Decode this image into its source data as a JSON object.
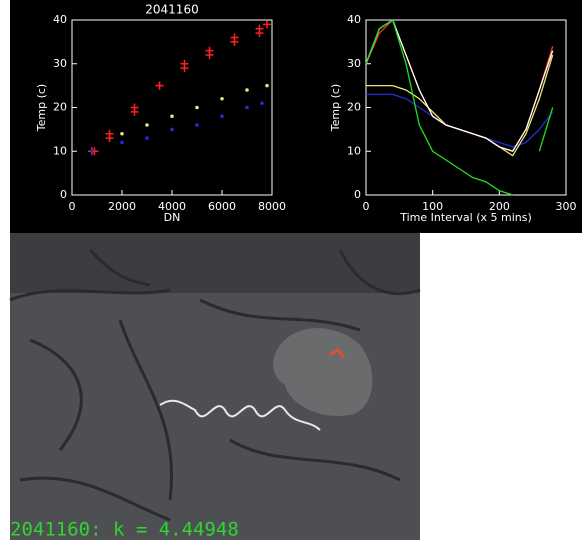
{
  "chart_data": [
    {
      "type": "scatter",
      "title": "2041160",
      "xlabel": "DN",
      "ylabel": "Temp (c)",
      "xlim": [
        0,
        8000
      ],
      "ylim": [
        0,
        40
      ],
      "xticks": [
        0,
        2000,
        4000,
        6000,
        8000
      ],
      "yticks": [
        0,
        10,
        20,
        30,
        40
      ],
      "series": [
        {
          "color": "#ff2020",
          "marker": "plus",
          "x": [
            800,
            1500,
            2500,
            3500,
            4500,
            5500,
            6500,
            7500,
            7800,
            7500,
            6500,
            5500,
            4500,
            3500,
            2500,
            1500,
            900
          ],
          "values": [
            10,
            14,
            20,
            25,
            29,
            32,
            35,
            37,
            39,
            38,
            36,
            33,
            30,
            25,
            19,
            13,
            10
          ]
        },
        {
          "color": "#e8e870",
          "marker": "dot",
          "x": [
            800,
            2000,
            3000,
            4000,
            5000,
            6000,
            7000,
            7800
          ],
          "values": [
            10,
            14,
            16,
            18,
            20,
            22,
            24,
            25
          ]
        },
        {
          "color": "#2030d0",
          "marker": "dot",
          "x": [
            800,
            2000,
            3000,
            4000,
            5000,
            6000,
            7000,
            7600
          ],
          "values": [
            10,
            12,
            13,
            15,
            16,
            18,
            20,
            21
          ]
        }
      ]
    },
    {
      "type": "line",
      "xlabel": "Time Interval (x 5 mins)",
      "ylabel": "Temp (c)",
      "xlim": [
        0,
        300
      ],
      "ylim": [
        0,
        40
      ],
      "xticks": [
        0,
        100,
        200,
        300
      ],
      "yticks": [
        0,
        10,
        20,
        30,
        40
      ],
      "x": [
        0,
        20,
        40,
        60,
        80,
        100,
        120,
        140,
        160,
        180,
        200,
        220,
        240,
        260,
        280
      ],
      "series": [
        {
          "color": "#2030d0",
          "values": [
            23,
            23,
            23,
            22,
            20,
            18,
            16,
            15,
            14,
            13,
            12,
            11,
            12,
            15,
            19
          ]
        },
        {
          "color": "#e8e870",
          "values": [
            25,
            25,
            25,
            24,
            22,
            19,
            16,
            15,
            14,
            13,
            11,
            9,
            14,
            22,
            32
          ]
        },
        {
          "color": "#ff3030",
          "values": [
            30,
            37,
            40,
            32,
            24,
            18,
            16,
            15,
            14,
            13,
            11,
            10,
            15,
            24,
            34
          ]
        },
        {
          "color": "#ffffff",
          "values": [
            30,
            38,
            40,
            32,
            24,
            18,
            16,
            15,
            14,
            13,
            11,
            10,
            15,
            24,
            33
          ]
        },
        {
          "color": "#20e020",
          "values": [
            30,
            38,
            40,
            30,
            16,
            10,
            8,
            6,
            4,
            3,
            1,
            0,
            null,
            10,
            20
          ]
        }
      ]
    }
  ],
  "photo": {
    "caption": "2041160: k = 4.44948"
  }
}
